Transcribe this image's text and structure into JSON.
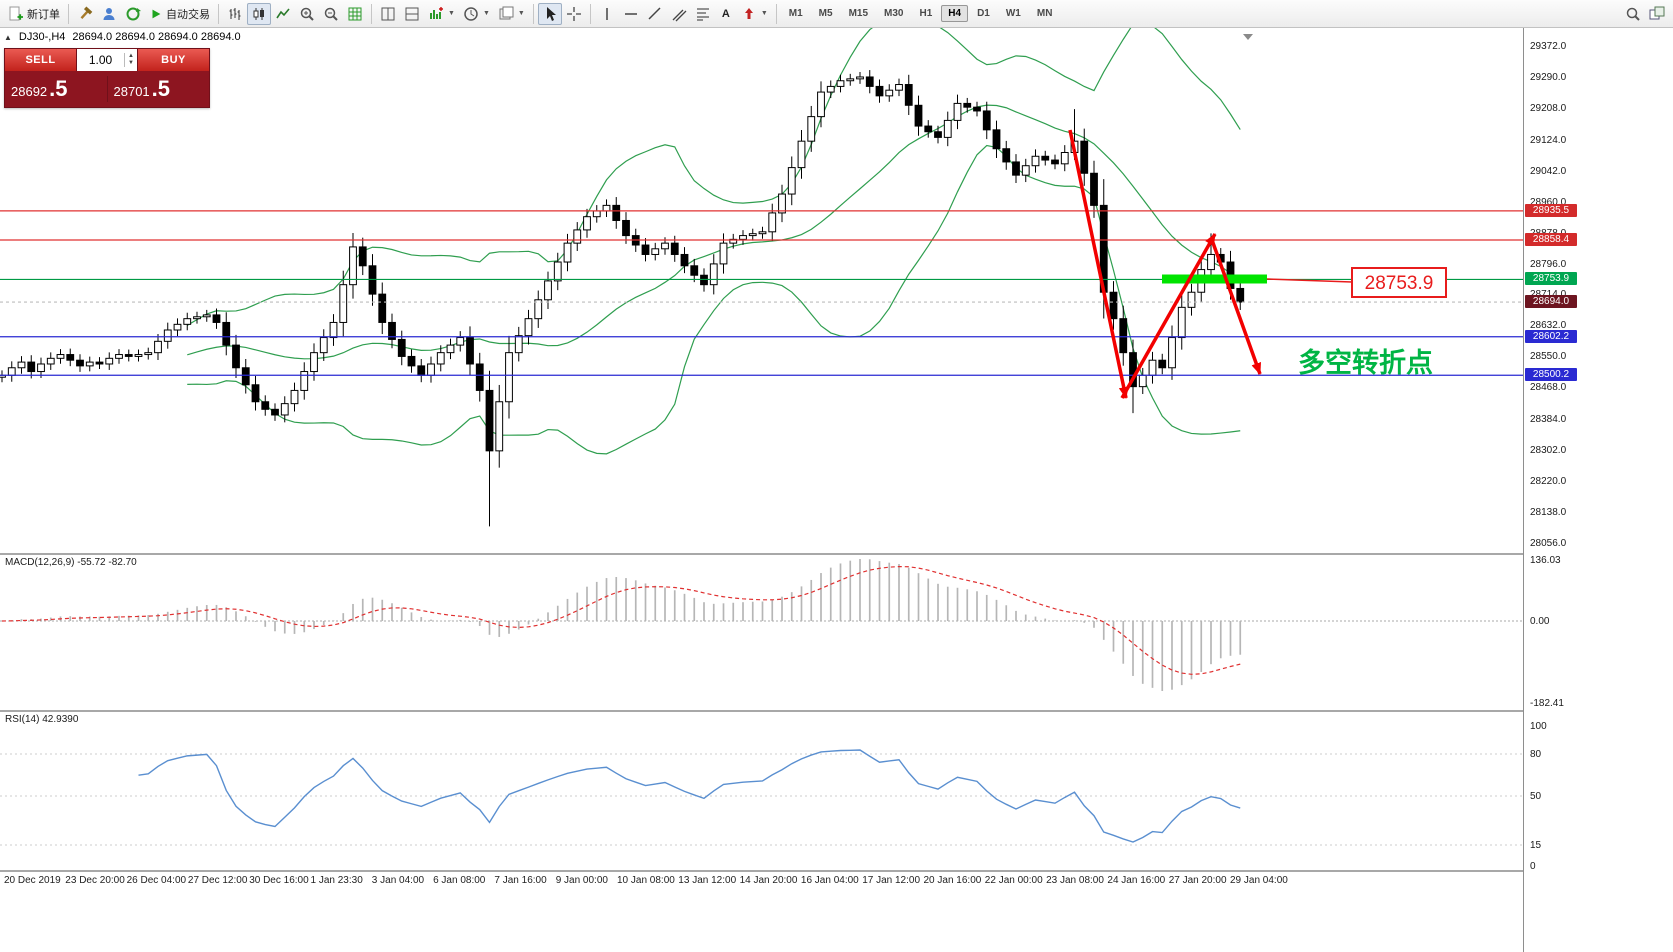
{
  "toolbar": {
    "new_order_label": "新订单",
    "autotrade_label": "自动交易",
    "timeframes": [
      "M1",
      "M5",
      "M15",
      "M30",
      "H1",
      "H4",
      "D1",
      "W1",
      "MN"
    ],
    "active_timeframe": "H4",
    "text_tool_label": "A"
  },
  "quote": {
    "expander": "▲",
    "symbol_period": "DJ30-,H4",
    "ohlc": "28694.0 28694.0 28694.0 28694.0",
    "sell_label": "SELL",
    "buy_label": "BUY",
    "lot_value": "1.00",
    "sell_price_main": "28692",
    "sell_price_frac": ".5",
    "buy_price_main": "28701",
    "buy_price_frac": ".5"
  },
  "annotations": {
    "price_callout": "28753.9",
    "turning_point_label": "多空转折点"
  },
  "price_axis": {
    "labels": [
      "29372.0",
      "29290.0",
      "29208.0",
      "29124.0",
      "29042.0",
      "28960.0",
      "28878.0",
      "28796.0",
      "28714.0",
      "28632.0",
      "28550.0",
      "28468.0",
      "28384.0",
      "28302.0",
      "28220.0",
      "28138.0",
      "28056.0"
    ],
    "tags": [
      {
        "text": "28935.5",
        "bg": "#d32b2b"
      },
      {
        "text": "28858.4",
        "bg": "#d32b2b"
      },
      {
        "text": "28753.9",
        "bg": "#00a651"
      },
      {
        "text": "28694.0",
        "bg": "#6d1520"
      },
      {
        "text": "28602.2",
        "bg": "#2a2ad2"
      },
      {
        "text": "28500.2",
        "bg": "#2a2ad2"
      }
    ]
  },
  "macd_panel": {
    "label": "MACD(12,26,9) -55.72 -82.70",
    "axis_labels": [
      "136.03",
      "0.00",
      "-182.41"
    ]
  },
  "rsi_panel": {
    "label": "RSI(14) 42.9390",
    "axis_labels": [
      "100",
      "80",
      "50",
      "15",
      "0"
    ]
  },
  "time_axis": {
    "labels": [
      "20 Dec 2019",
      "23 Dec 20:00",
      "26 Dec 04:00",
      "27 Dec 12:00",
      "30 Dec 16:00",
      "1 Jan 23:30",
      "3 Jan 04:00",
      "6 Jan 08:00",
      "7 Jan 16:00",
      "9 Jan 00:00",
      "10 Jan 08:00",
      "13 Jan 12:00",
      "14 Jan 20:00",
      "16 Jan 04:00",
      "17 Jan 12:00",
      "20 Jan 16:00",
      "22 Jan 00:00",
      "23 Jan 08:00",
      "24 Jan 16:00",
      "27 Jan 20:00",
      "29 Jan 04:00"
    ]
  },
  "chart_data": {
    "type": "candlestick",
    "symbol": "DJ30-",
    "timeframe": "H4",
    "ohlc_current": {
      "open": 28694.0,
      "high": 28694.0,
      "low": 28694.0,
      "close": 28694.0
    },
    "bid": 28692.5,
    "ask": 28701.5,
    "first_open": 28495,
    "closes": [
      28500,
      28520,
      28535,
      28510,
      28530,
      28545,
      28555,
      28540,
      28525,
      28535,
      28530,
      28545,
      28555,
      28550,
      28555,
      28560,
      28590,
      28620,
      28635,
      28650,
      28655,
      28660,
      28640,
      28580,
      28520,
      28475,
      28430,
      28410,
      28395,
      28425,
      28460,
      28510,
      28560,
      28600,
      28640,
      28740,
      28840,
      28790,
      28715,
      28640,
      28595,
      28550,
      28525,
      28500,
      28530,
      28560,
      28580,
      28600,
      28530,
      28460,
      28300,
      28430,
      28560,
      28605,
      28650,
      28700,
      28750,
      28800,
      28850,
      28885,
      28920,
      28935,
      28950,
      28910,
      28870,
      28845,
      28820,
      28835,
      28850,
      28820,
      28790,
      28765,
      28740,
      28795,
      28850,
      28860,
      28870,
      28875,
      28880,
      28930,
      28980,
      29050,
      29120,
      29185,
      29250,
      29265,
      29280,
      29285,
      29290,
      29265,
      29240,
      29255,
      29270,
      29215,
      29160,
      29145,
      29130,
      29175,
      29220,
      29210,
      29200,
      29150,
      29100,
      29065,
      29030,
      29055,
      29080,
      29070,
      29060,
      29090,
      29120,
      29035,
      28950,
      28720,
      28650,
      28560,
      28470,
      28500,
      28540,
      28520,
      28600,
      28680,
      28720,
      28780,
      28820,
      28800,
      28730,
      28694
    ],
    "wick_overrides": {
      "50": {
        "low": 28100
      },
      "110": {
        "high": 29205
      },
      "116": {
        "low": 28400
      },
      "124": {
        "high": 28876
      }
    },
    "levels": [
      {
        "price": 28935.5,
        "color": "#e03030"
      },
      {
        "price": 28858.4,
        "color": "#e03030"
      },
      {
        "price": 28753.9,
        "color": "#009a44"
      },
      {
        "price": 28694.0,
        "color": "#bcbcbc",
        "dash": "3,3"
      },
      {
        "price": 28602.2,
        "color": "#2a2ad2"
      },
      {
        "price": 28500.2,
        "color": "#2a2ad2"
      }
    ],
    "highlight_segment": {
      "price": 28753.9,
      "color": "#00e400"
    },
    "indicators": {
      "bollinger": {
        "period": 20,
        "deviation": 2,
        "color": "#2f9e4f"
      },
      "macd": {
        "fast": 12,
        "slow": 26,
        "signal": 9,
        "main_value": -55.72,
        "signal_value": -82.7,
        "scale_max": 136.03,
        "scale_min": -182.41
      },
      "rsi": {
        "period": 14,
        "value": 42.939
      }
    }
  }
}
